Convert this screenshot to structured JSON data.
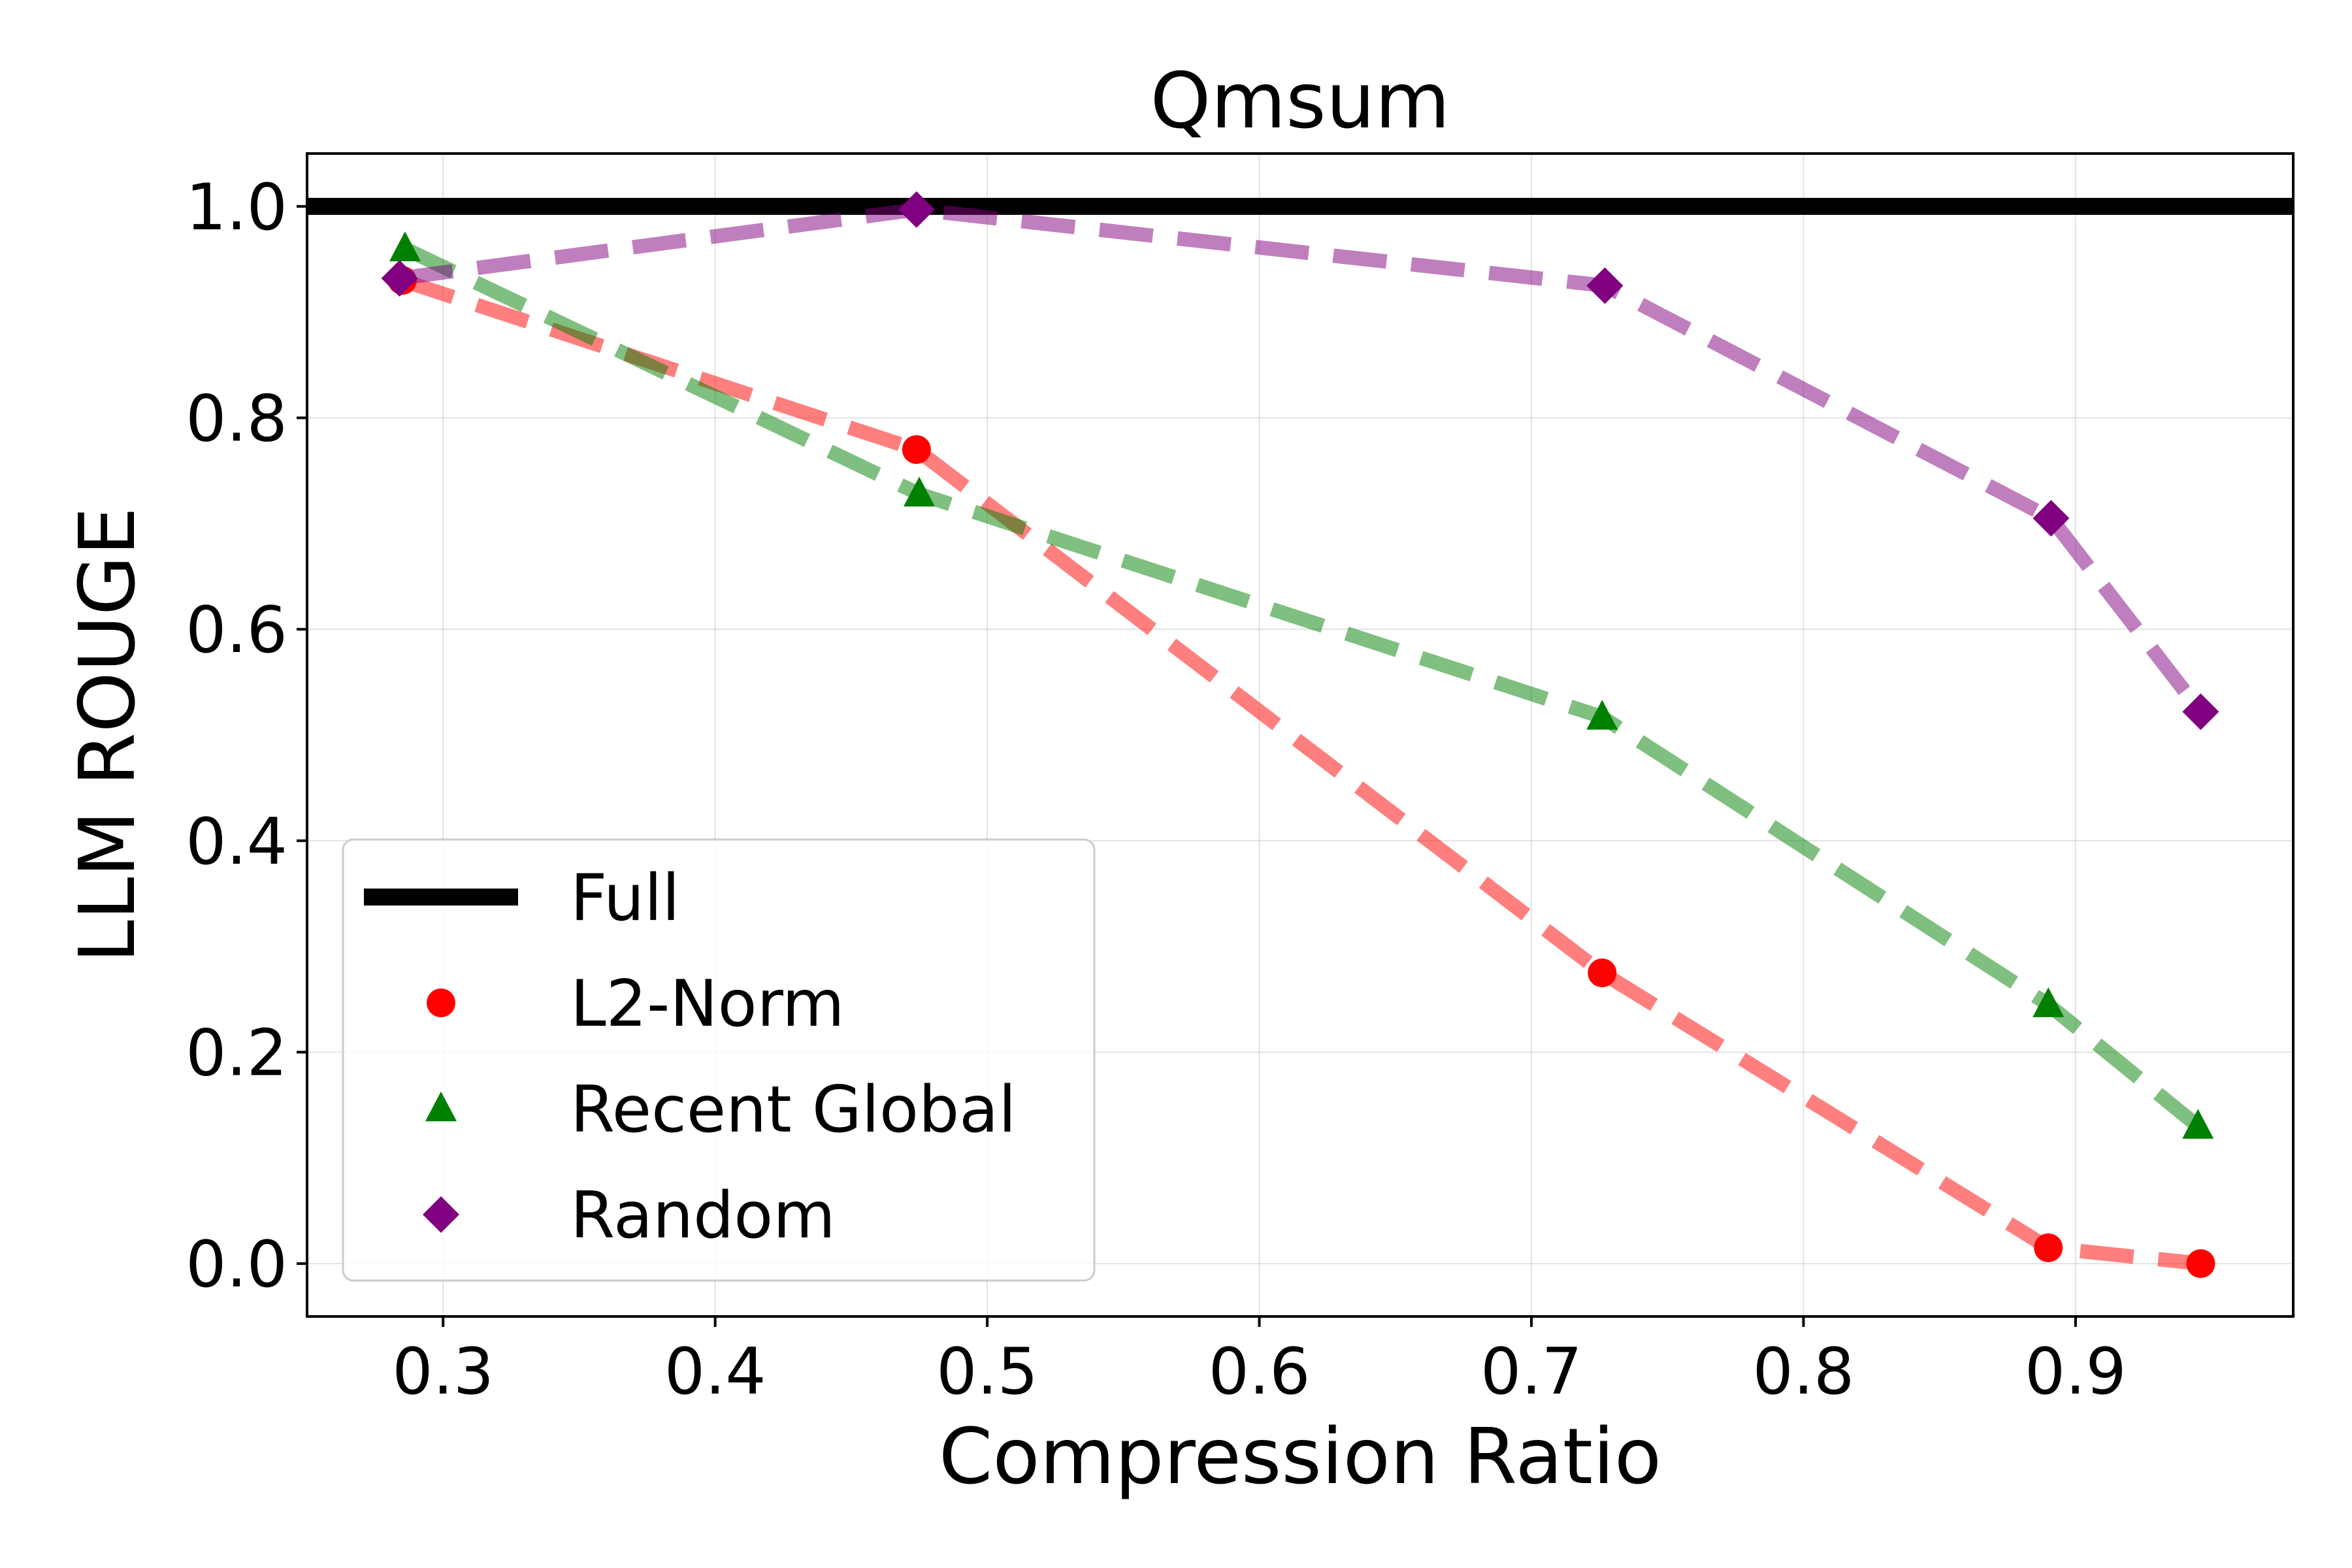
{
  "chart_data": {
    "type": "line",
    "title": "Qmsum",
    "xlabel": "Compression Ratio",
    "ylabel": "LLM ROUGE",
    "xlim": [
      0.25,
      0.98
    ],
    "ylim": [
      -0.05,
      1.05
    ],
    "xticks": [
      0.3,
      0.4,
      0.5,
      0.6,
      0.7,
      0.8,
      0.9
    ],
    "xtick_labels": [
      "0.3",
      "0.4",
      "0.5",
      "0.6",
      "0.7",
      "0.8",
      "0.9"
    ],
    "yticks": [
      0.0,
      0.2,
      0.4,
      0.6,
      0.8,
      1.0
    ],
    "ytick_labels": [
      "0.0",
      "0.2",
      "0.4",
      "0.6",
      "0.8",
      "1.0"
    ],
    "grid": true,
    "legend_position": "lower-left",
    "reference_line": {
      "name": "Full",
      "y": 1.0,
      "color": "#000000"
    },
    "series": [
      {
        "name": "L2-Norm",
        "color": "#ff0000",
        "marker": "circle",
        "points": [
          [
            0.285,
            0.93
          ],
          [
            0.474,
            0.77
          ],
          [
            0.726,
            0.275
          ],
          [
            0.89,
            0.015
          ],
          [
            0.946,
            0.0
          ]
        ]
      },
      {
        "name": "Recent Global",
        "color": "#008000",
        "marker": "triangle",
        "points": [
          [
            0.286,
            0.96
          ],
          [
            0.475,
            0.728
          ],
          [
            0.726,
            0.517
          ],
          [
            0.89,
            0.245
          ],
          [
            0.945,
            0.13
          ]
        ]
      },
      {
        "name": "Random",
        "color": "#800080",
        "marker": "diamond",
        "points": [
          [
            0.284,
            0.932
          ],
          [
            0.474,
            0.997
          ],
          [
            0.727,
            0.925
          ],
          [
            0.891,
            0.705
          ],
          [
            0.946,
            0.522
          ]
        ]
      }
    ]
  }
}
